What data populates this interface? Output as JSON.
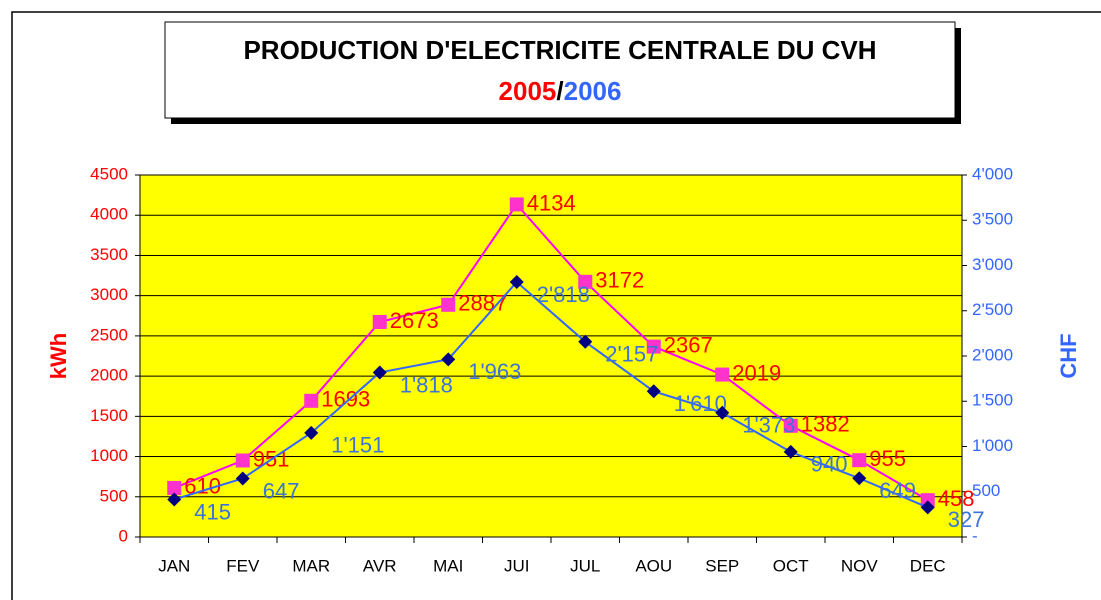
{
  "chart_data": {
    "type": "line",
    "title": "PRODUCTION D'ELECTRICITE CENTRALE DU CVH",
    "title_separator": "/",
    "categories": [
      "JAN",
      "FEV",
      "MAR",
      "AVR",
      "MAI",
      "JUI",
      "JUL",
      "AOU",
      "SEP",
      "OCT",
      "NOV",
      "DEC"
    ],
    "series": [
      {
        "name": "2005",
        "color": "#ff00ff",
        "marker_color": "#ff33cc",
        "label_color": "#ff0000",
        "values": [
          610,
          951,
          1693,
          2673,
          2887,
          4134,
          3172,
          2367,
          2019,
          1382,
          955,
          458
        ]
      },
      {
        "name": "2006",
        "color": "#3366ff",
        "marker_color": "#000080",
        "label_color": "#3b73d9",
        "axis": "y2",
        "values": [
          415,
          647,
          1151,
          1818,
          1963,
          2818,
          2157,
          1610,
          1373,
          940,
          649,
          327
        ],
        "value_labels": [
          "415",
          "647",
          "1'151",
          "1'818",
          "1'963",
          "2'818",
          "2'157",
          "1'610",
          "1'373",
          "940",
          "649",
          "327"
        ]
      }
    ],
    "ylabel": "kWh",
    "y2label": "CHF",
    "ylim": [
      0,
      4500
    ],
    "yticks": [
      0,
      500,
      1000,
      1500,
      2000,
      2500,
      3000,
      3500,
      4000,
      4500
    ],
    "y2lim": [
      0,
      4000
    ],
    "y2ticks": [
      {
        "value": 0,
        "label": "-"
      },
      500,
      {
        "value": 1000,
        "label": "1'000"
      },
      {
        "value": 1500,
        "label": "1'500"
      },
      {
        "value": 2000,
        "label": "2'000"
      },
      {
        "value": 2500,
        "label": "2'500"
      },
      {
        "value": 3000,
        "label": "3'000"
      },
      {
        "value": 3500,
        "label": "3'500"
      },
      {
        "value": 4000,
        "label": "4'000"
      }
    ],
    "grid": true,
    "plot_color": "#ffff00"
  }
}
